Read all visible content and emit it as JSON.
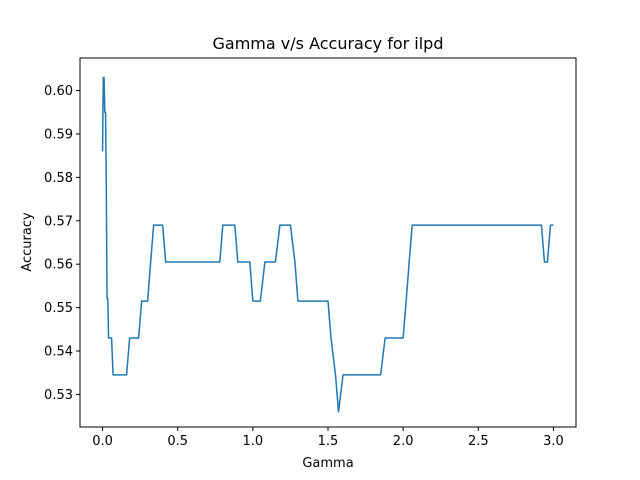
{
  "chart_data": {
    "type": "line",
    "title": "Gamma v/s Accuracy for ilpd",
    "xlabel": "Gamma",
    "ylabel": "Accuracy",
    "xlim": [
      -0.15,
      3.15
    ],
    "ylim": [
      0.5225,
      0.6075
    ],
    "x_ticks": [
      0.0,
      0.5,
      1.0,
      1.5,
      2.0,
      2.5,
      3.0
    ],
    "x_tick_labels": [
      "0.0",
      "0.5",
      "1.0",
      "1.5",
      "2.0",
      "2.5",
      "3.0"
    ],
    "y_ticks": [
      0.53,
      0.54,
      0.55,
      0.56,
      0.57,
      0.58,
      0.59,
      0.6
    ],
    "y_tick_labels": [
      "0.53",
      "0.54",
      "0.55",
      "0.56",
      "0.57",
      "0.58",
      "0.59",
      "0.60"
    ],
    "grid": false,
    "legend": "none",
    "series": [
      {
        "color": "#1f77b4",
        "x": [
          0.0,
          0.005,
          0.01,
          0.015,
          0.02,
          0.025,
          0.03,
          0.035,
          0.04,
          0.05,
          0.06,
          0.07,
          0.08,
          0.1,
          0.12,
          0.14,
          0.16,
          0.18,
          0.2,
          0.22,
          0.24,
          0.26,
          0.28,
          0.3,
          0.32,
          0.34,
          0.36,
          0.38,
          0.4,
          0.42,
          0.44,
          0.5,
          0.6,
          0.7,
          0.78,
          0.8,
          0.82,
          0.85,
          0.88,
          0.9,
          0.92,
          0.95,
          0.98,
          1.0,
          1.02,
          1.05,
          1.08,
          1.1,
          1.12,
          1.15,
          1.18,
          1.2,
          1.22,
          1.25,
          1.28,
          1.3,
          1.35,
          1.4,
          1.45,
          1.48,
          1.5,
          1.52,
          1.55,
          1.57,
          1.6,
          1.65,
          1.7,
          1.75,
          1.8,
          1.85,
          1.88,
          1.9,
          1.95,
          2.0,
          2.02,
          2.04,
          2.06,
          2.1,
          2.2,
          2.4,
          2.6,
          2.8,
          2.9,
          2.92,
          2.94,
          2.96,
          2.98,
          3.0
        ],
        "y": [
          0.586,
          0.603,
          0.603,
          0.595,
          0.595,
          0.578,
          0.552,
          0.552,
          0.543,
          0.543,
          0.543,
          0.5345,
          0.5345,
          0.5345,
          0.5345,
          0.5345,
          0.5345,
          0.543,
          0.543,
          0.543,
          0.543,
          0.5515,
          0.5515,
          0.5515,
          0.5605,
          0.569,
          0.569,
          0.569,
          0.569,
          0.5605,
          0.5605,
          0.5605,
          0.5605,
          0.5605,
          0.5605,
          0.569,
          0.569,
          0.569,
          0.569,
          0.5605,
          0.5605,
          0.5605,
          0.5605,
          0.5515,
          0.5515,
          0.5515,
          0.5605,
          0.5605,
          0.5605,
          0.5605,
          0.569,
          0.569,
          0.569,
          0.569,
          0.5605,
          0.5515,
          0.5515,
          0.5515,
          0.5515,
          0.5515,
          0.5515,
          0.543,
          0.5345,
          0.526,
          0.5345,
          0.5345,
          0.5345,
          0.5345,
          0.5345,
          0.5345,
          0.543,
          0.543,
          0.543,
          0.543,
          0.5515,
          0.5605,
          0.569,
          0.569,
          0.569,
          0.569,
          0.569,
          0.569,
          0.569,
          0.569,
          0.5605,
          0.5605,
          0.569,
          0.569
        ]
      }
    ]
  }
}
